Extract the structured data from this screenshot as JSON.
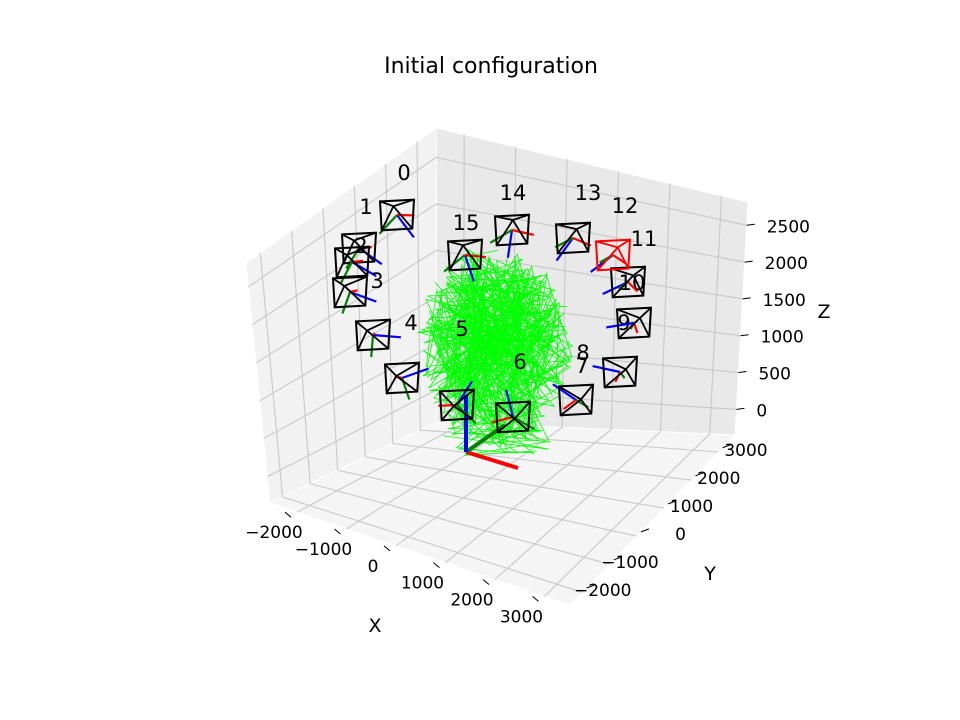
{
  "chart_data": {
    "type": "scatter",
    "title": "Initial configuration",
    "xlabel": "X",
    "ylabel": "Y",
    "zlabel": "Z",
    "x_ticks": [
      "−2000",
      "−1000",
      "0",
      "1000",
      "2000",
      "3000"
    ],
    "y_ticks": [
      "−2000",
      "−1000",
      "0",
      "1000",
      "2000",
      "3000"
    ],
    "z_ticks": [
      "0",
      "500",
      "1000",
      "1500",
      "2000",
      "2500"
    ],
    "grid": true,
    "cameras": [
      {
        "label": "0",
        "highlight": false
      },
      {
        "label": "1",
        "highlight": false
      },
      {
        "label": "2",
        "highlight": false
      },
      {
        "label": "3",
        "highlight": false
      },
      {
        "label": "4",
        "highlight": false
      },
      {
        "label": "5",
        "highlight": false
      },
      {
        "label": "6",
        "highlight": false
      },
      {
        "label": "7",
        "highlight": false
      },
      {
        "label": "8",
        "highlight": false
      },
      {
        "label": "9",
        "highlight": false
      },
      {
        "label": "10",
        "highlight": false
      },
      {
        "label": "11",
        "highlight": false
      },
      {
        "label": "12",
        "highlight": true
      },
      {
        "label": "13",
        "highlight": false
      },
      {
        "label": "14",
        "highlight": false
      },
      {
        "label": "15",
        "highlight": false
      }
    ],
    "colors": {
      "camera": "#000000",
      "reference_camera": "#ff0000",
      "axis_x": "#ff0000",
      "axis_y": "#008000",
      "axis_z": "#0000ff",
      "points": "#00ff00",
      "pane": "#f2f2f2",
      "grid": "#c8c8c8"
    }
  }
}
